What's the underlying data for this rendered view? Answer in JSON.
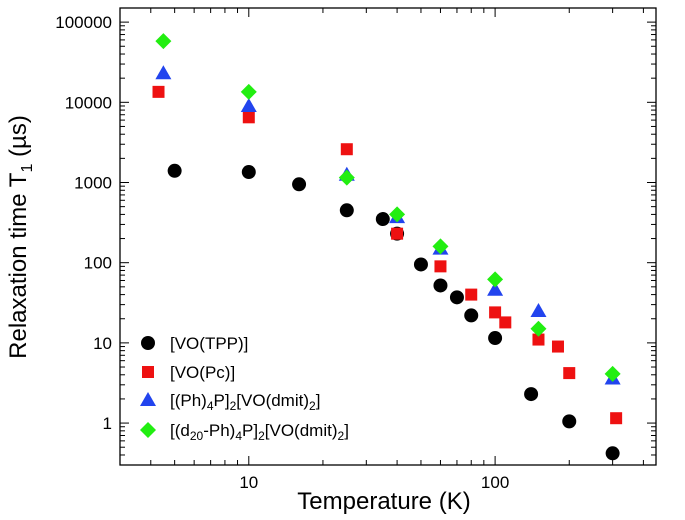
{
  "chart_data": {
    "type": "scatter",
    "xlabel": "Temperature (K)",
    "ylabel": "Relaxation time T1 (µs)",
    "xscale": "log",
    "yscale": "log",
    "xlim": [
      3,
      450
    ],
    "ylim": [
      0.3,
      150000
    ],
    "x_tick_labels": [
      "10",
      "100"
    ],
    "y_tick_labels": [
      "1",
      "10",
      "100",
      "1000",
      "10000",
      "100000"
    ],
    "legend_position": "bottom-left",
    "series": [
      {
        "name": "[VO(TPP)]",
        "marker": "circle",
        "color": "#000000",
        "points": [
          [
            5,
            1400
          ],
          [
            10,
            1350
          ],
          [
            16,
            950
          ],
          [
            25,
            450
          ],
          [
            35,
            350
          ],
          [
            40,
            230
          ],
          [
            50,
            95
          ],
          [
            60,
            52
          ],
          [
            70,
            37
          ],
          [
            80,
            22
          ],
          [
            100,
            11.5
          ],
          [
            140,
            2.3
          ],
          [
            200,
            1.05
          ],
          [
            300,
            0.42
          ]
        ]
      },
      {
        "name": "[VO(Pc)]",
        "marker": "square",
        "color": "#ee1111",
        "points": [
          [
            4.3,
            13500
          ],
          [
            10,
            6500
          ],
          [
            25,
            2600
          ],
          [
            40,
            230
          ],
          [
            60,
            90
          ],
          [
            80,
            40
          ],
          [
            100,
            24
          ],
          [
            110,
            18
          ],
          [
            150,
            11
          ],
          [
            180,
            9
          ],
          [
            200,
            4.2
          ],
          [
            310,
            1.15
          ]
        ]
      },
      {
        "name": "[(Ph)4P]2[VO(dmit)2]",
        "marker": "triangle",
        "color": "#2244ee",
        "points": [
          [
            4.5,
            23000
          ],
          [
            10,
            9000
          ],
          [
            25,
            1250
          ],
          [
            40,
            370
          ],
          [
            60,
            150
          ],
          [
            100,
            46
          ],
          [
            150,
            25
          ],
          [
            300,
            3.6
          ]
        ]
      },
      {
        "name": "[(d20-Ph)4P]2[VO(dmit)2]",
        "marker": "diamond",
        "color": "#22ee11",
        "points": [
          [
            4.5,
            58000
          ],
          [
            10,
            13500
          ],
          [
            25,
            1150
          ],
          [
            40,
            400
          ],
          [
            60,
            160
          ],
          [
            100,
            62
          ],
          [
            150,
            15
          ],
          [
            300,
            4.1
          ]
        ]
      }
    ]
  }
}
